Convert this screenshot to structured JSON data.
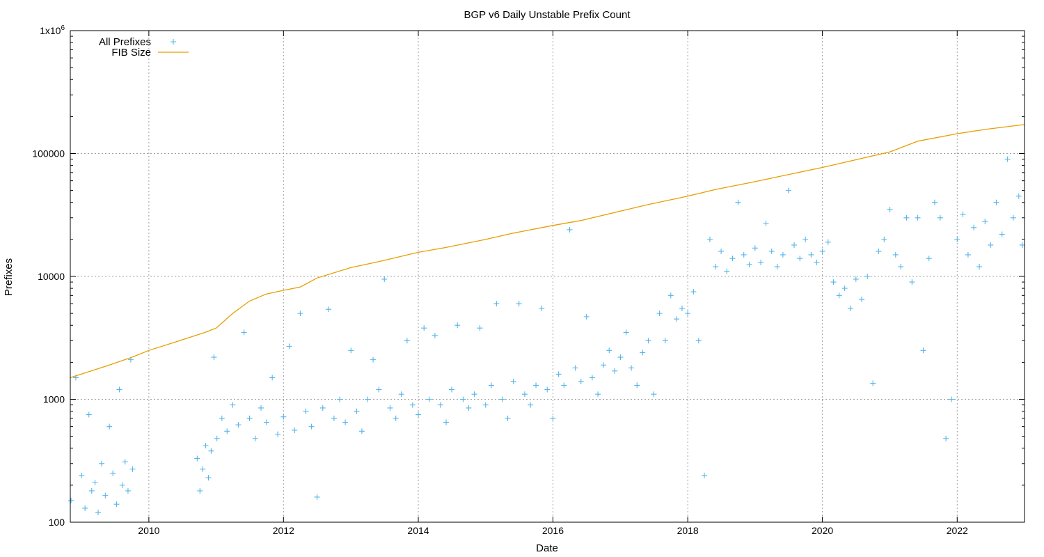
{
  "chart_data": {
    "type": "scatter",
    "title": "BGP v6 Daily Unstable Prefix Count",
    "xlabel": "Date",
    "ylabel": "Prefixes",
    "xlim": [
      "2008-11-01",
      "2023-01-01"
    ],
    "ylim": [
      100,
      1000000
    ],
    "y_scale": "log",
    "grid": true,
    "legend_position": "top-left",
    "x_ticks": [
      {
        "value": "2010-01-01",
        "label": "2010"
      },
      {
        "value": "2012-01-01",
        "label": "2012"
      },
      {
        "value": "2014-01-01",
        "label": "2014"
      },
      {
        "value": "2016-01-01",
        "label": "2016"
      },
      {
        "value": "2018-01-01",
        "label": "2018"
      },
      {
        "value": "2020-01-01",
        "label": "2020"
      },
      {
        "value": "2022-01-01",
        "label": "2022"
      }
    ],
    "y_ticks": [
      {
        "value": 100,
        "label": "100"
      },
      {
        "value": 1000,
        "label": "1000"
      },
      {
        "value": 10000,
        "label": "10000"
      },
      {
        "value": 100000,
        "label": "100000"
      },
      {
        "value": 1000000,
        "label": "1x10",
        "sup": "6"
      }
    ],
    "series": [
      {
        "name": "All Prefixes",
        "kind": "points",
        "marker": "plus",
        "color": "#56b4e9",
        "points": [
          [
            "2008-11-05",
            150
          ],
          [
            "2008-12-01",
            1500
          ],
          [
            "2009-01-01",
            240
          ],
          [
            "2009-01-20",
            130
          ],
          [
            "2009-02-10",
            750
          ],
          [
            "2009-02-25",
            180
          ],
          [
            "2009-03-15",
            210
          ],
          [
            "2009-04-01",
            120
          ],
          [
            "2009-04-20",
            300
          ],
          [
            "2009-05-10",
            165
          ],
          [
            "2009-06-01",
            600
          ],
          [
            "2009-06-20",
            250
          ],
          [
            "2009-07-10",
            140
          ],
          [
            "2009-07-25",
            1200
          ],
          [
            "2009-08-10",
            200
          ],
          [
            "2009-08-25",
            310
          ],
          [
            "2009-09-10",
            180
          ],
          [
            "2009-09-25",
            2100
          ],
          [
            "2009-10-05",
            270
          ],
          [
            "2010-09-20",
            330
          ],
          [
            "2010-10-05",
            180
          ],
          [
            "2010-10-20",
            270
          ],
          [
            "2010-11-05",
            420
          ],
          [
            "2010-11-20",
            230
          ],
          [
            "2010-12-05",
            380
          ],
          [
            "2010-12-20",
            2200
          ],
          [
            "2011-01-05",
            480
          ],
          [
            "2011-02-01",
            700
          ],
          [
            "2011-03-01",
            550
          ],
          [
            "2011-04-01",
            900
          ],
          [
            "2011-05-01",
            620
          ],
          [
            "2011-06-01",
            3500
          ],
          [
            "2011-07-01",
            700
          ],
          [
            "2011-08-01",
            480
          ],
          [
            "2011-09-01",
            850
          ],
          [
            "2011-10-01",
            650
          ],
          [
            "2011-11-01",
            1500
          ],
          [
            "2011-12-01",
            520
          ],
          [
            "2012-01-01",
            720
          ],
          [
            "2012-02-01",
            2700
          ],
          [
            "2012-03-01",
            560
          ],
          [
            "2012-04-01",
            5000
          ],
          [
            "2012-05-01",
            800
          ],
          [
            "2012-06-01",
            600
          ],
          [
            "2012-07-01",
            160
          ],
          [
            "2012-08-01",
            850
          ],
          [
            "2012-09-01",
            5400
          ],
          [
            "2012-10-01",
            700
          ],
          [
            "2012-11-01",
            1000
          ],
          [
            "2012-12-01",
            650
          ],
          [
            "2013-01-01",
            2500
          ],
          [
            "2013-02-01",
            800
          ],
          [
            "2013-03-01",
            550
          ],
          [
            "2013-04-01",
            1000
          ],
          [
            "2013-05-01",
            2100
          ],
          [
            "2013-06-01",
            1200
          ],
          [
            "2013-07-01",
            9500
          ],
          [
            "2013-08-01",
            850
          ],
          [
            "2013-09-01",
            700
          ],
          [
            "2013-10-01",
            1100
          ],
          [
            "2013-11-01",
            3000
          ],
          [
            "2013-12-01",
            900
          ],
          [
            "2014-01-01",
            750
          ],
          [
            "2014-02-01",
            3800
          ],
          [
            "2014-03-01",
            1000
          ],
          [
            "2014-04-01",
            3300
          ],
          [
            "2014-05-01",
            900
          ],
          [
            "2014-06-01",
            650
          ],
          [
            "2014-07-01",
            1200
          ],
          [
            "2014-08-01",
            4000
          ],
          [
            "2014-09-01",
            1000
          ],
          [
            "2014-10-01",
            850
          ],
          [
            "2014-11-01",
            1100
          ],
          [
            "2014-12-01",
            3800
          ],
          [
            "2015-01-01",
            900
          ],
          [
            "2015-02-01",
            1300
          ],
          [
            "2015-03-01",
            6000
          ],
          [
            "2015-04-01",
            1000
          ],
          [
            "2015-05-01",
            700
          ],
          [
            "2015-06-01",
            1400
          ],
          [
            "2015-07-01",
            6000
          ],
          [
            "2015-08-01",
            1100
          ],
          [
            "2015-09-01",
            900
          ],
          [
            "2015-10-01",
            1300
          ],
          [
            "2015-11-01",
            5500
          ],
          [
            "2015-12-01",
            1200
          ],
          [
            "2016-01-01",
            700
          ],
          [
            "2016-02-01",
            1600
          ],
          [
            "2016-03-01",
            1300
          ],
          [
            "2016-04-01",
            24000
          ],
          [
            "2016-05-01",
            1800
          ],
          [
            "2016-06-01",
            1400
          ],
          [
            "2016-07-01",
            4700
          ],
          [
            "2016-08-01",
            1500
          ],
          [
            "2016-09-01",
            1100
          ],
          [
            "2016-10-01",
            1900
          ],
          [
            "2016-11-01",
            2500
          ],
          [
            "2016-12-01",
            1700
          ],
          [
            "2017-01-01",
            2200
          ],
          [
            "2017-02-01",
            3500
          ],
          [
            "2017-03-01",
            1800
          ],
          [
            "2017-04-01",
            1300
          ],
          [
            "2017-05-01",
            2400
          ],
          [
            "2017-06-01",
            3000
          ],
          [
            "2017-07-01",
            1100
          ],
          [
            "2017-08-01",
            5000
          ],
          [
            "2017-09-01",
            3000
          ],
          [
            "2017-10-01",
            7000
          ],
          [
            "2017-11-01",
            4500
          ],
          [
            "2017-12-01",
            5500
          ],
          [
            "2018-01-01",
            5000
          ],
          [
            "2018-02-01",
            7500
          ],
          [
            "2018-03-01",
            3000
          ],
          [
            "2018-04-01",
            240
          ],
          [
            "2018-05-01",
            20000
          ],
          [
            "2018-06-01",
            12000
          ],
          [
            "2018-07-01",
            16000
          ],
          [
            "2018-08-01",
            11000
          ],
          [
            "2018-09-01",
            14000
          ],
          [
            "2018-10-01",
            40000
          ],
          [
            "2018-11-01",
            15000
          ],
          [
            "2018-12-01",
            12500
          ],
          [
            "2019-01-01",
            17000
          ],
          [
            "2019-02-01",
            13000
          ],
          [
            "2019-03-01",
            27000
          ],
          [
            "2019-04-01",
            16000
          ],
          [
            "2019-05-01",
            12000
          ],
          [
            "2019-06-01",
            15000
          ],
          [
            "2019-07-01",
            50000
          ],
          [
            "2019-08-01",
            18000
          ],
          [
            "2019-09-01",
            14000
          ],
          [
            "2019-10-01",
            20000
          ],
          [
            "2019-11-01",
            15000
          ],
          [
            "2019-12-01",
            13000
          ],
          [
            "2020-01-01",
            16000
          ],
          [
            "2020-02-01",
            19000
          ],
          [
            "2020-03-01",
            9000
          ],
          [
            "2020-04-01",
            7000
          ],
          [
            "2020-05-01",
            8000
          ],
          [
            "2020-06-01",
            5500
          ],
          [
            "2020-07-01",
            9500
          ],
          [
            "2020-08-01",
            6500
          ],
          [
            "2020-09-01",
            10000
          ],
          [
            "2020-10-01",
            1350
          ],
          [
            "2020-11-01",
            16000
          ],
          [
            "2020-12-01",
            20000
          ],
          [
            "2021-01-01",
            35000
          ],
          [
            "2021-02-01",
            15000
          ],
          [
            "2021-03-01",
            12000
          ],
          [
            "2021-04-01",
            30000
          ],
          [
            "2021-05-01",
            9000
          ],
          [
            "2021-06-01",
            30000
          ],
          [
            "2021-07-01",
            2500
          ],
          [
            "2021-08-01",
            14000
          ],
          [
            "2021-09-01",
            40000
          ],
          [
            "2021-10-01",
            30000
          ],
          [
            "2021-11-01",
            480
          ],
          [
            "2021-12-01",
            1000
          ],
          [
            "2022-01-01",
            20000
          ],
          [
            "2022-02-01",
            32000
          ],
          [
            "2022-03-01",
            15000
          ],
          [
            "2022-04-01",
            25000
          ],
          [
            "2022-05-01",
            12000
          ],
          [
            "2022-06-01",
            28000
          ],
          [
            "2022-07-01",
            18000
          ],
          [
            "2022-08-01",
            40000
          ],
          [
            "2022-09-01",
            22000
          ],
          [
            "2022-10-01",
            90000
          ],
          [
            "2022-11-01",
            30000
          ],
          [
            "2022-12-01",
            45000
          ],
          [
            "2022-12-20",
            18000
          ]
        ]
      },
      {
        "name": "FIB Size",
        "kind": "line",
        "color": "#e69f00",
        "points": [
          [
            "2008-11-01",
            1500
          ],
          [
            "2009-06-01",
            1900
          ],
          [
            "2009-10-01",
            2200
          ],
          [
            "2010-01-01",
            2500
          ],
          [
            "2010-06-01",
            2950
          ],
          [
            "2010-11-01",
            3500
          ],
          [
            "2011-01-01",
            3800
          ],
          [
            "2011-04-01",
            5000
          ],
          [
            "2011-07-01",
            6300
          ],
          [
            "2011-10-01",
            7200
          ],
          [
            "2012-01-01",
            7700
          ],
          [
            "2012-04-01",
            8200
          ],
          [
            "2012-07-01",
            9700
          ],
          [
            "2013-01-01",
            11800
          ],
          [
            "2013-06-01",
            13200
          ],
          [
            "2014-01-01",
            15700
          ],
          [
            "2014-06-01",
            17200
          ],
          [
            "2015-01-01",
            20000
          ],
          [
            "2015-06-01",
            22500
          ],
          [
            "2016-01-01",
            26000
          ],
          [
            "2016-06-01",
            28500
          ],
          [
            "2017-01-01",
            34000
          ],
          [
            "2017-06-01",
            38500
          ],
          [
            "2018-01-01",
            45000
          ],
          [
            "2018-06-01",
            51000
          ],
          [
            "2019-01-01",
            59000
          ],
          [
            "2019-06-01",
            66000
          ],
          [
            "2020-01-01",
            77000
          ],
          [
            "2020-06-01",
            87000
          ],
          [
            "2021-01-01",
            103000
          ],
          [
            "2021-06-01",
            126000
          ],
          [
            "2022-01-01",
            145000
          ],
          [
            "2022-06-01",
            157000
          ],
          [
            "2023-01-01",
            172000
          ]
        ]
      }
    ]
  }
}
